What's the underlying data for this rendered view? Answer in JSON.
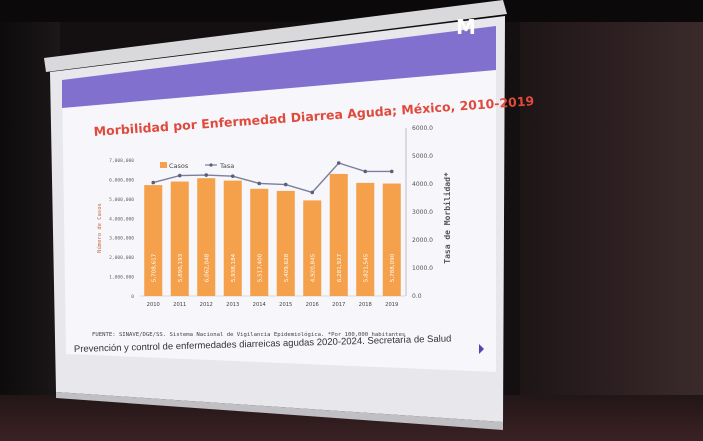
{
  "slide": {
    "title": "Morbilidad por Enfermedad Diarrea Aguda; México, 2010-2019",
    "source_note": "FUENTE: SINAVE/DGE/SS. Sistema Nacional de Vigilancia Epidemiológica. *Por 100,000 habitantes",
    "caption": "Prevención y control de enfermedades diarreicas agudas 2020-2024. Secretaría de Salud",
    "logo_text": "M"
  },
  "chart_data": {
    "type": "bar",
    "title": "Morbilidad por Enfermedad Diarrea Aguda; México, 2010-2019",
    "categories": [
      "2010",
      "2011",
      "2012",
      "2013",
      "2014",
      "2015",
      "2016",
      "2017",
      "2018",
      "2019"
    ],
    "series": [
      {
        "name": "Casos",
        "type": "bar",
        "axis": "left",
        "color": "#f5a04a",
        "values": [
          5708617,
          5890193,
          6062048,
          5938184,
          5517400,
          5409628,
          4920845,
          6281927,
          5821545,
          5788090
        ],
        "labels": [
          "5,708,617",
          "5,890,193",
          "6,062,048",
          "5,938,184",
          "5,517,400",
          "5,409,628",
          "4,920,845",
          "6,281,927",
          "5,821,545",
          "5,788,090"
        ]
      },
      {
        "name": "Tasa",
        "type": "line",
        "axis": "right",
        "color": "#7b7f9a",
        "values": [
          4050,
          4300,
          4320,
          4280,
          4020,
          3980,
          3700,
          4750,
          4450,
          4450
        ]
      }
    ],
    "ylabel": "Número de Casos",
    "y2label": "Tasa de Morbilidad*",
    "ylim": [
      0,
      7000000
    ],
    "y2lim": [
      0,
      6000
    ],
    "yticks": [
      "0",
      "1,000,000",
      "2,000,000",
      "3,000,000",
      "4,000,000",
      "5,000,000",
      "6,000,000",
      "7,000,000"
    ],
    "y2ticks": [
      "0.0",
      "1000.0",
      "2000.0",
      "3000.0",
      "4000.0",
      "5000.0",
      "6000.0"
    ],
    "legend": "top-left",
    "grid": false
  },
  "colors": {
    "title": "#e04a3c",
    "bar": "#f5a04a",
    "line": "#7b7f9a",
    "accent": "#5a3fb0"
  }
}
